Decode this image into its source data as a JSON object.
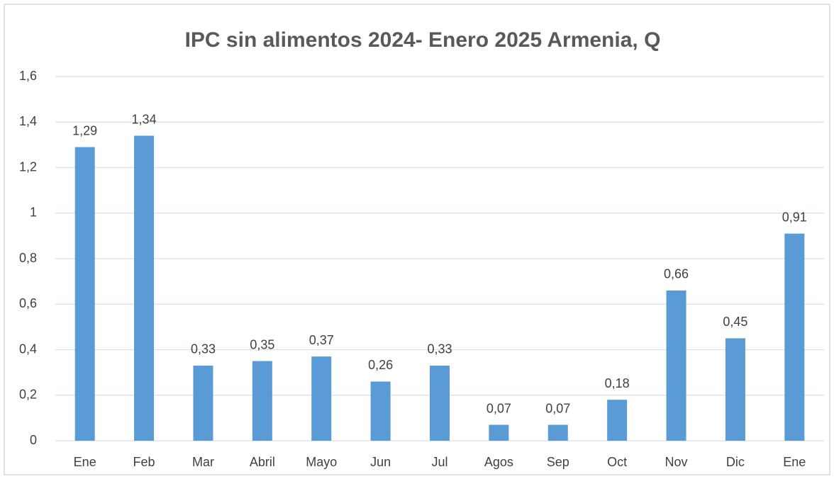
{
  "chart_data": {
    "type": "bar",
    "title": "IPC sin alimentos 2024-  Enero 2025 Armenia, Q",
    "categories": [
      "Ene",
      "Feb",
      "Mar",
      "Abril",
      "Mayo",
      "Jun",
      "Jul",
      "Agos",
      "Sep",
      "Oct",
      "Nov",
      "Dic",
      "Ene"
    ],
    "values": [
      1.29,
      1.34,
      0.33,
      0.35,
      0.37,
      0.26,
      0.33,
      0.07,
      0.07,
      0.18,
      0.66,
      0.45,
      0.91
    ],
    "value_labels": [
      "1,29",
      "1,34",
      "0,33",
      "0,35",
      "0,37",
      "0,26",
      "0,33",
      "0,07",
      "0,07",
      "0,18",
      "0,66",
      "0,45",
      "0,91"
    ],
    "color": "#5b9bd5",
    "ylim": [
      0,
      1.6
    ],
    "yticks": [
      0,
      {
        "value": 0.2,
        "label": "0,2"
      },
      {
        "value": 0.4,
        "label": "0,4"
      },
      {
        "value": 0.6,
        "label": "0,6"
      },
      {
        "value": 0.8,
        "label": "0,8"
      },
      1,
      {
        "value": 1.2,
        "label": "1,2"
      },
      {
        "value": 1.4,
        "label": "1,4"
      },
      {
        "value": 1.6,
        "label": "1,6"
      }
    ],
    "grid": true
  }
}
